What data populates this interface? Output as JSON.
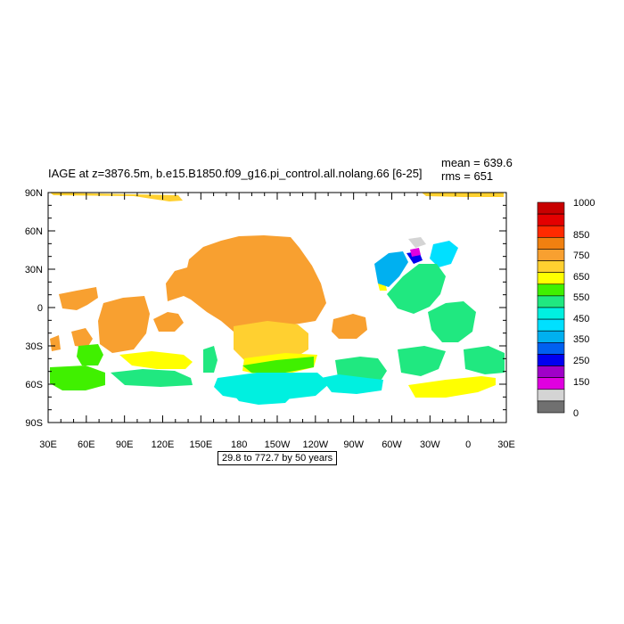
{
  "title": "IAGE at z=3876.5m, b.e15.B1850.f09_g16.pi_control.all.nolang.66 [6-25]",
  "stats": {
    "mean": "mean = 639.6",
    "rms": "rms = 651"
  },
  "range_note": "29.8 to 772.7 by 50 years",
  "lat_labels": [
    "90N",
    "60N",
    "30N",
    "0",
    "30S",
    "60S",
    "90S"
  ],
  "lon_labels": [
    "30E",
    "60E",
    "90E",
    "120E",
    "150E",
    "180",
    "150W",
    "120W",
    "90W",
    "60W",
    "30W",
    "0",
    "30E"
  ],
  "colorbar": {
    "labels": [
      "1000",
      "850",
      "750",
      "650",
      "550",
      "450",
      "350",
      "250",
      "150",
      "0"
    ],
    "colors": [
      "#c80000",
      "#e40000",
      "#ff2a00",
      "#f08010",
      "#f8a030",
      "#ffd030",
      "#ffff00",
      "#40f000",
      "#20e880",
      "#00f0e0",
      "#00e0ff",
      "#00b0f0",
      "#0060f0",
      "#0000f0",
      "#a000c8",
      "#e000e0",
      "#d4d4d4",
      "#707070"
    ]
  }
}
